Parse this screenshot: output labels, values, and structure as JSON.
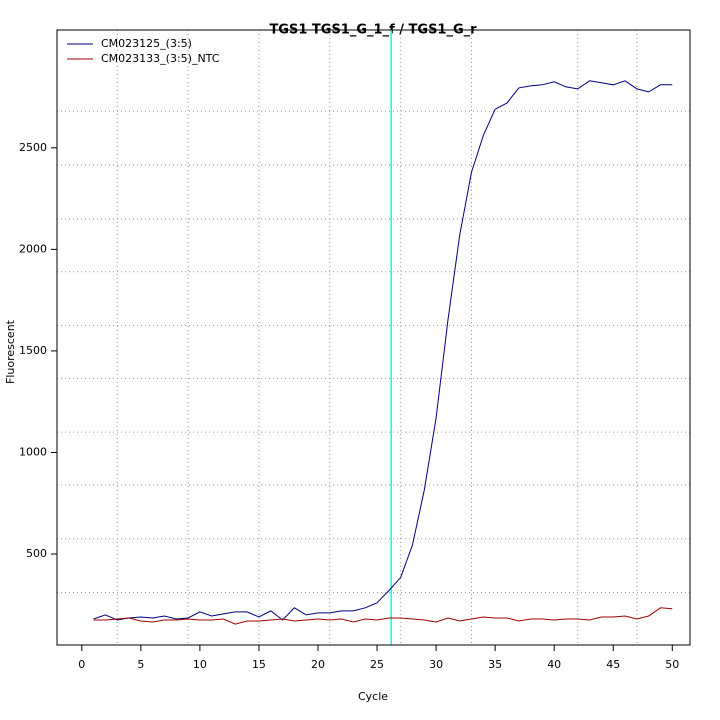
{
  "chart_data": {
    "type": "line",
    "title": "TGS1  TGS1_G_1_f / TGS1_G_r",
    "xlabel": "Cycle",
    "ylabel": "Fluorescent",
    "x": [
      1,
      2,
      3,
      4,
      5,
      6,
      7,
      8,
      9,
      10,
      11,
      12,
      13,
      14,
      15,
      16,
      17,
      18,
      19,
      20,
      21,
      22,
      23,
      24,
      25,
      26,
      27,
      28,
      29,
      30,
      31,
      32,
      33,
      34,
      35,
      36,
      37,
      38,
      39,
      40,
      41,
      42,
      43,
      44,
      45,
      46,
      47,
      48,
      49,
      50
    ],
    "series": [
      {
        "name": "CM023125_(3:5)",
        "color": "#000080",
        "values": [
          180,
          200,
          175,
          185,
          190,
          185,
          195,
          180,
          185,
          215,
          195,
          205,
          215,
          215,
          190,
          220,
          175,
          235,
          200,
          210,
          210,
          220,
          220,
          235,
          260,
          320,
          385,
          545,
          815,
          1170,
          1650,
          2070,
          2380,
          2560,
          2690,
          2720,
          2795,
          2805,
          2810,
          2825,
          2800,
          2790,
          2830,
          2820,
          2810,
          2830,
          2790,
          2775,
          2810,
          2810
        ]
      },
      {
        "name": "CM023133_(3:5)_NTC",
        "color": "#a00000",
        "values": [
          175,
          175,
          180,
          185,
          170,
          165,
          175,
          175,
          180,
          175,
          175,
          180,
          155,
          170,
          170,
          175,
          180,
          170,
          175,
          180,
          175,
          180,
          165,
          180,
          175,
          185,
          185,
          180,
          175,
          165,
          185,
          170,
          180,
          190,
          185,
          185,
          170,
          180,
          180,
          175,
          180,
          180,
          175,
          190,
          190,
          195,
          180,
          195,
          235,
          230
        ]
      }
    ],
    "xlim": [
      -2.1,
      51.5
    ],
    "xticks": [
      0,
      5,
      10,
      15,
      20,
      25,
      30,
      35,
      40,
      45,
      50
    ],
    "ylim": [
      52,
      3080
    ],
    "yticks": [
      500,
      1000,
      1500,
      2000,
      2500
    ],
    "xgrid": [
      3,
      9,
      15,
      21,
      27,
      33,
      42,
      47
    ],
    "ygrid": [
      310,
      575,
      840,
      1100,
      1365,
      1625,
      1890,
      2150,
      2415,
      2680
    ],
    "threshold_x": 26.2,
    "threshold_color": "#00ffff",
    "legend": "top-left"
  }
}
